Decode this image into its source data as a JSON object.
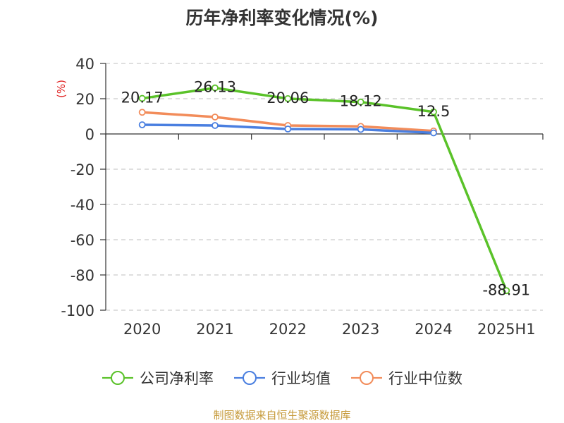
{
  "chart_data": {
    "type": "line",
    "title": "历年净利率变化情况(%)",
    "ylabel": "(%)",
    "categories": [
      "2020",
      "2021",
      "2022",
      "2023",
      "2024",
      "2025H1"
    ],
    "ylim": [
      -100,
      40
    ],
    "yticks": [
      40,
      20,
      0,
      -20,
      -40,
      -60,
      -80,
      -100
    ],
    "grid": true,
    "legend_position": "bottom",
    "series": [
      {
        "name": "公司净利率",
        "color": "#5ac229",
        "values": [
          20.17,
          26.13,
          20.06,
          18.12,
          12.5,
          -88.91
        ],
        "labels": [
          "20.17",
          "26.13",
          "20.06",
          "18.12",
          "12.5",
          "-88.91"
        ]
      },
      {
        "name": "行业均值",
        "color": "#4a7fe0",
        "values": [
          5.2,
          4.8,
          2.8,
          2.6,
          0.6,
          null
        ]
      },
      {
        "name": "行业中位数",
        "color": "#f28c5a",
        "values": [
          12.3,
          9.6,
          4.8,
          4.3,
          1.7,
          null
        ]
      }
    ]
  },
  "source_note": "制图数据来自恒生聚源数据库"
}
